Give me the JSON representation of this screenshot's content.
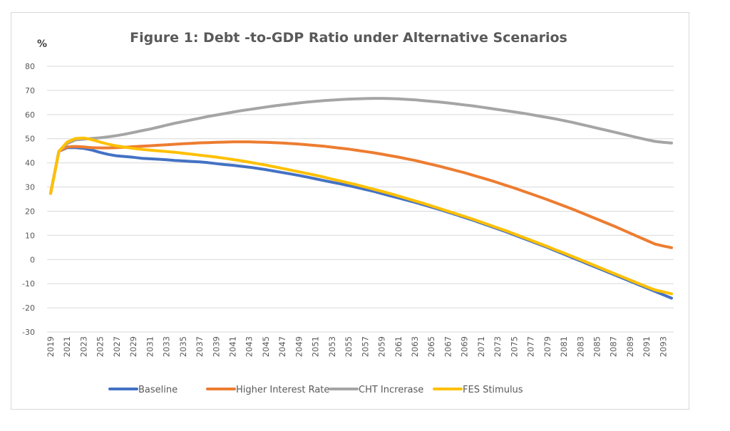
{
  "chart_data": {
    "type": "line",
    "title": "Figure 1: Debt -to-GDP Ratio under Alternative Scenarios",
    "ylabel": "%",
    "xlabel": "",
    "ylim": [
      -30,
      80
    ],
    "yticks": [
      80,
      70,
      60,
      50,
      40,
      30,
      20,
      10,
      0,
      -10,
      -20,
      -30
    ],
    "x_start": 2019,
    "x_end": 2094,
    "xtick_labels": [
      "2019",
      "2021",
      "2023",
      "2025",
      "2027",
      "2029",
      "2031",
      "2033",
      "2035",
      "2037",
      "2039",
      "2041",
      "2043",
      "2045",
      "2047",
      "2049",
      "2051",
      "2053",
      "2055",
      "2057",
      "2059",
      "2061",
      "2063",
      "2065",
      "2067",
      "2069",
      "2071",
      "2073",
      "2075",
      "2077",
      "2079",
      "2081",
      "2083",
      "2085",
      "2087",
      "2089",
      "2091",
      "2093"
    ],
    "grid": true,
    "legend_position": "bottom",
    "series": [
      {
        "name": "Baseline",
        "color": "#4472C4",
        "values": [
          27.4,
          44.8,
          46.3,
          46.3,
          46.0,
          45.3,
          44.3,
          43.5,
          42.9,
          42.6,
          42.3,
          41.9,
          41.7,
          41.5,
          41.3,
          41.0,
          40.8,
          40.6,
          40.4,
          40.1,
          39.7,
          39.3,
          39.0,
          38.6,
          38.2,
          37.7,
          37.2,
          36.6,
          36.0,
          35.4,
          34.8,
          34.1,
          33.4,
          32.7,
          32.0,
          31.3,
          30.6,
          29.8,
          29.0,
          28.2,
          27.3,
          26.4,
          25.5,
          24.6,
          23.7,
          22.7,
          21.7,
          20.7,
          19.6,
          18.5,
          17.4,
          16.3,
          15.1,
          13.9,
          12.7,
          11.5,
          10.2,
          8.9,
          7.6,
          6.3,
          5.0,
          3.6,
          2.2,
          0.8,
          -0.6,
          -2.0,
          -3.4,
          -4.8,
          -6.2,
          -7.6,
          -9.0,
          -10.4,
          -11.8,
          -13.2,
          -14.6,
          -16.0
        ]
      },
      {
        "name": "Higher Interest Rate",
        "color": "#ED7D31",
        "values": [
          27.4,
          44.8,
          46.6,
          46.8,
          46.6,
          46.3,
          46.2,
          46.2,
          46.3,
          46.5,
          46.7,
          46.9,
          47.1,
          47.3,
          47.5,
          47.7,
          47.9,
          48.1,
          48.3,
          48.4,
          48.5,
          48.6,
          48.7,
          48.7,
          48.7,
          48.6,
          48.5,
          48.4,
          48.2,
          48.0,
          47.8,
          47.5,
          47.2,
          46.9,
          46.5,
          46.1,
          45.7,
          45.2,
          44.7,
          44.2,
          43.6,
          43.0,
          42.4,
          41.7,
          41.0,
          40.2,
          39.4,
          38.6,
          37.7,
          36.8,
          35.9,
          34.9,
          33.9,
          32.9,
          31.8,
          30.7,
          29.6,
          28.4,
          27.2,
          26.0,
          24.8,
          23.5,
          22.2,
          20.9,
          19.5,
          18.1,
          16.7,
          15.3,
          13.9,
          12.4,
          10.9,
          9.4,
          7.9,
          6.4,
          5.6,
          4.9
        ]
      },
      {
        "name": "CHT Increrase",
        "color": "#A5A5A5",
        "values": [
          27.4,
          44.8,
          48.0,
          49.5,
          49.8,
          50.1,
          50.4,
          50.8,
          51.3,
          51.9,
          52.6,
          53.3,
          54.0,
          54.8,
          55.6,
          56.4,
          57.1,
          57.8,
          58.5,
          59.2,
          59.8,
          60.4,
          61.0,
          61.6,
          62.1,
          62.6,
          63.1,
          63.6,
          64.0,
          64.4,
          64.8,
          65.2,
          65.5,
          65.8,
          66.0,
          66.2,
          66.4,
          66.5,
          66.6,
          66.7,
          66.7,
          66.6,
          66.5,
          66.3,
          66.1,
          65.8,
          65.5,
          65.2,
          64.8,
          64.4,
          64.0,
          63.6,
          63.1,
          62.6,
          62.1,
          61.6,
          61.1,
          60.6,
          60.0,
          59.4,
          58.8,
          58.2,
          57.5,
          56.8,
          56.0,
          55.2,
          54.4,
          53.6,
          52.8,
          52.0,
          51.2,
          50.4,
          49.6,
          48.9,
          48.5,
          48.2
        ]
      },
      {
        "name": "FES Stimulus",
        "color": "#FFC000",
        "values": [
          27.4,
          44.8,
          48.6,
          50.1,
          50.3,
          49.6,
          48.6,
          47.7,
          47.0,
          46.5,
          46.0,
          45.6,
          45.3,
          45.0,
          44.7,
          44.4,
          44.0,
          43.6,
          43.2,
          42.8,
          42.4,
          41.9,
          41.4,
          40.9,
          40.3,
          39.7,
          39.1,
          38.4,
          37.7,
          37.0,
          36.3,
          35.6,
          34.9,
          34.1,
          33.3,
          32.5,
          31.7,
          30.9,
          30.0,
          29.1,
          28.2,
          27.3,
          26.3,
          25.3,
          24.3,
          23.3,
          22.2,
          21.1,
          20.0,
          18.9,
          17.8,
          16.7,
          15.5,
          14.3,
          13.1,
          11.9,
          10.6,
          9.3,
          8.0,
          6.7,
          5.4,
          4.0,
          2.7,
          1.3,
          -0.1,
          -1.5,
          -2.9,
          -4.3,
          -5.7,
          -7.1,
          -8.5,
          -9.9,
          -11.3,
          -12.6,
          -13.4,
          -14.2
        ]
      }
    ]
  }
}
